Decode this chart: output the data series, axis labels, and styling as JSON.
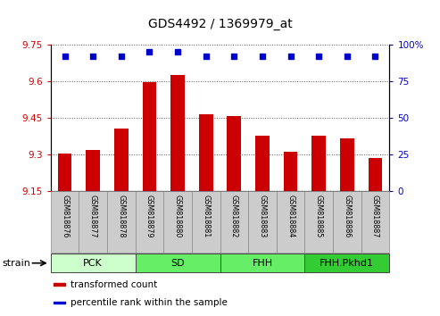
{
  "title": "GDS4492 / 1369979_at",
  "samples": [
    "GSM818876",
    "GSM818877",
    "GSM818878",
    "GSM818879",
    "GSM818880",
    "GSM818881",
    "GSM818882",
    "GSM818883",
    "GSM818884",
    "GSM818885",
    "GSM818886",
    "GSM818887"
  ],
  "bar_values": [
    9.302,
    9.318,
    9.405,
    9.597,
    9.625,
    9.465,
    9.455,
    9.375,
    9.31,
    9.375,
    9.365,
    9.285
  ],
  "percentile_values": [
    92,
    92,
    92,
    95,
    95,
    92,
    92,
    92,
    92,
    92,
    92,
    92
  ],
  "bar_color": "#cc0000",
  "dot_color": "#0000cc",
  "ylim_left": [
    9.15,
    9.75
  ],
  "ylim_right": [
    0,
    100
  ],
  "yticks_left": [
    9.15,
    9.3,
    9.45,
    9.6,
    9.75
  ],
  "yticks_right": [
    0,
    25,
    50,
    75,
    100
  ],
  "ytick_labels_left": [
    "9.15",
    "9.3",
    "9.45",
    "9.6",
    "9.75"
  ],
  "ytick_labels_right": [
    "0",
    "25",
    "50",
    "75",
    "100%"
  ],
  "groups": [
    {
      "label": "PCK",
      "start": 0,
      "end": 2,
      "color": "#ccffcc"
    },
    {
      "label": "SD",
      "start": 3,
      "end": 5,
      "color": "#66ee66"
    },
    {
      "label": "FHH",
      "start": 6,
      "end": 8,
      "color": "#66ee66"
    },
    {
      "label": "FHH.Pkhd1",
      "start": 9,
      "end": 11,
      "color": "#33cc33"
    }
  ],
  "strain_label": "strain",
  "legend_items": [
    {
      "color": "#cc0000",
      "label": "transformed count"
    },
    {
      "color": "#0000cc",
      "label": "percentile rank within the sample"
    }
  ],
  "bar_width": 0.5,
  "xtick_bg": "#cccccc",
  "xtick_border": "#888888",
  "plot_bg": "#ffffff"
}
